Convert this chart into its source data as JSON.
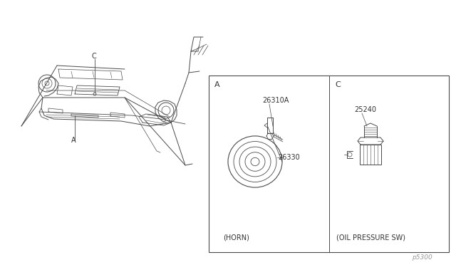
{
  "bg_color": "#ffffff",
  "line_color": "#4a4a4a",
  "text_color": "#333333",
  "part_numbers": {
    "horn_bolt": "26310A",
    "horn": "26330",
    "oil_pressure_sw": "25240"
  },
  "labels": {
    "A_label": "A",
    "C_label": "C",
    "horn_caption": "(HORN)",
    "oil_caption": "(OIL PRESSURE SW)",
    "diagram_code": "p5300"
  }
}
